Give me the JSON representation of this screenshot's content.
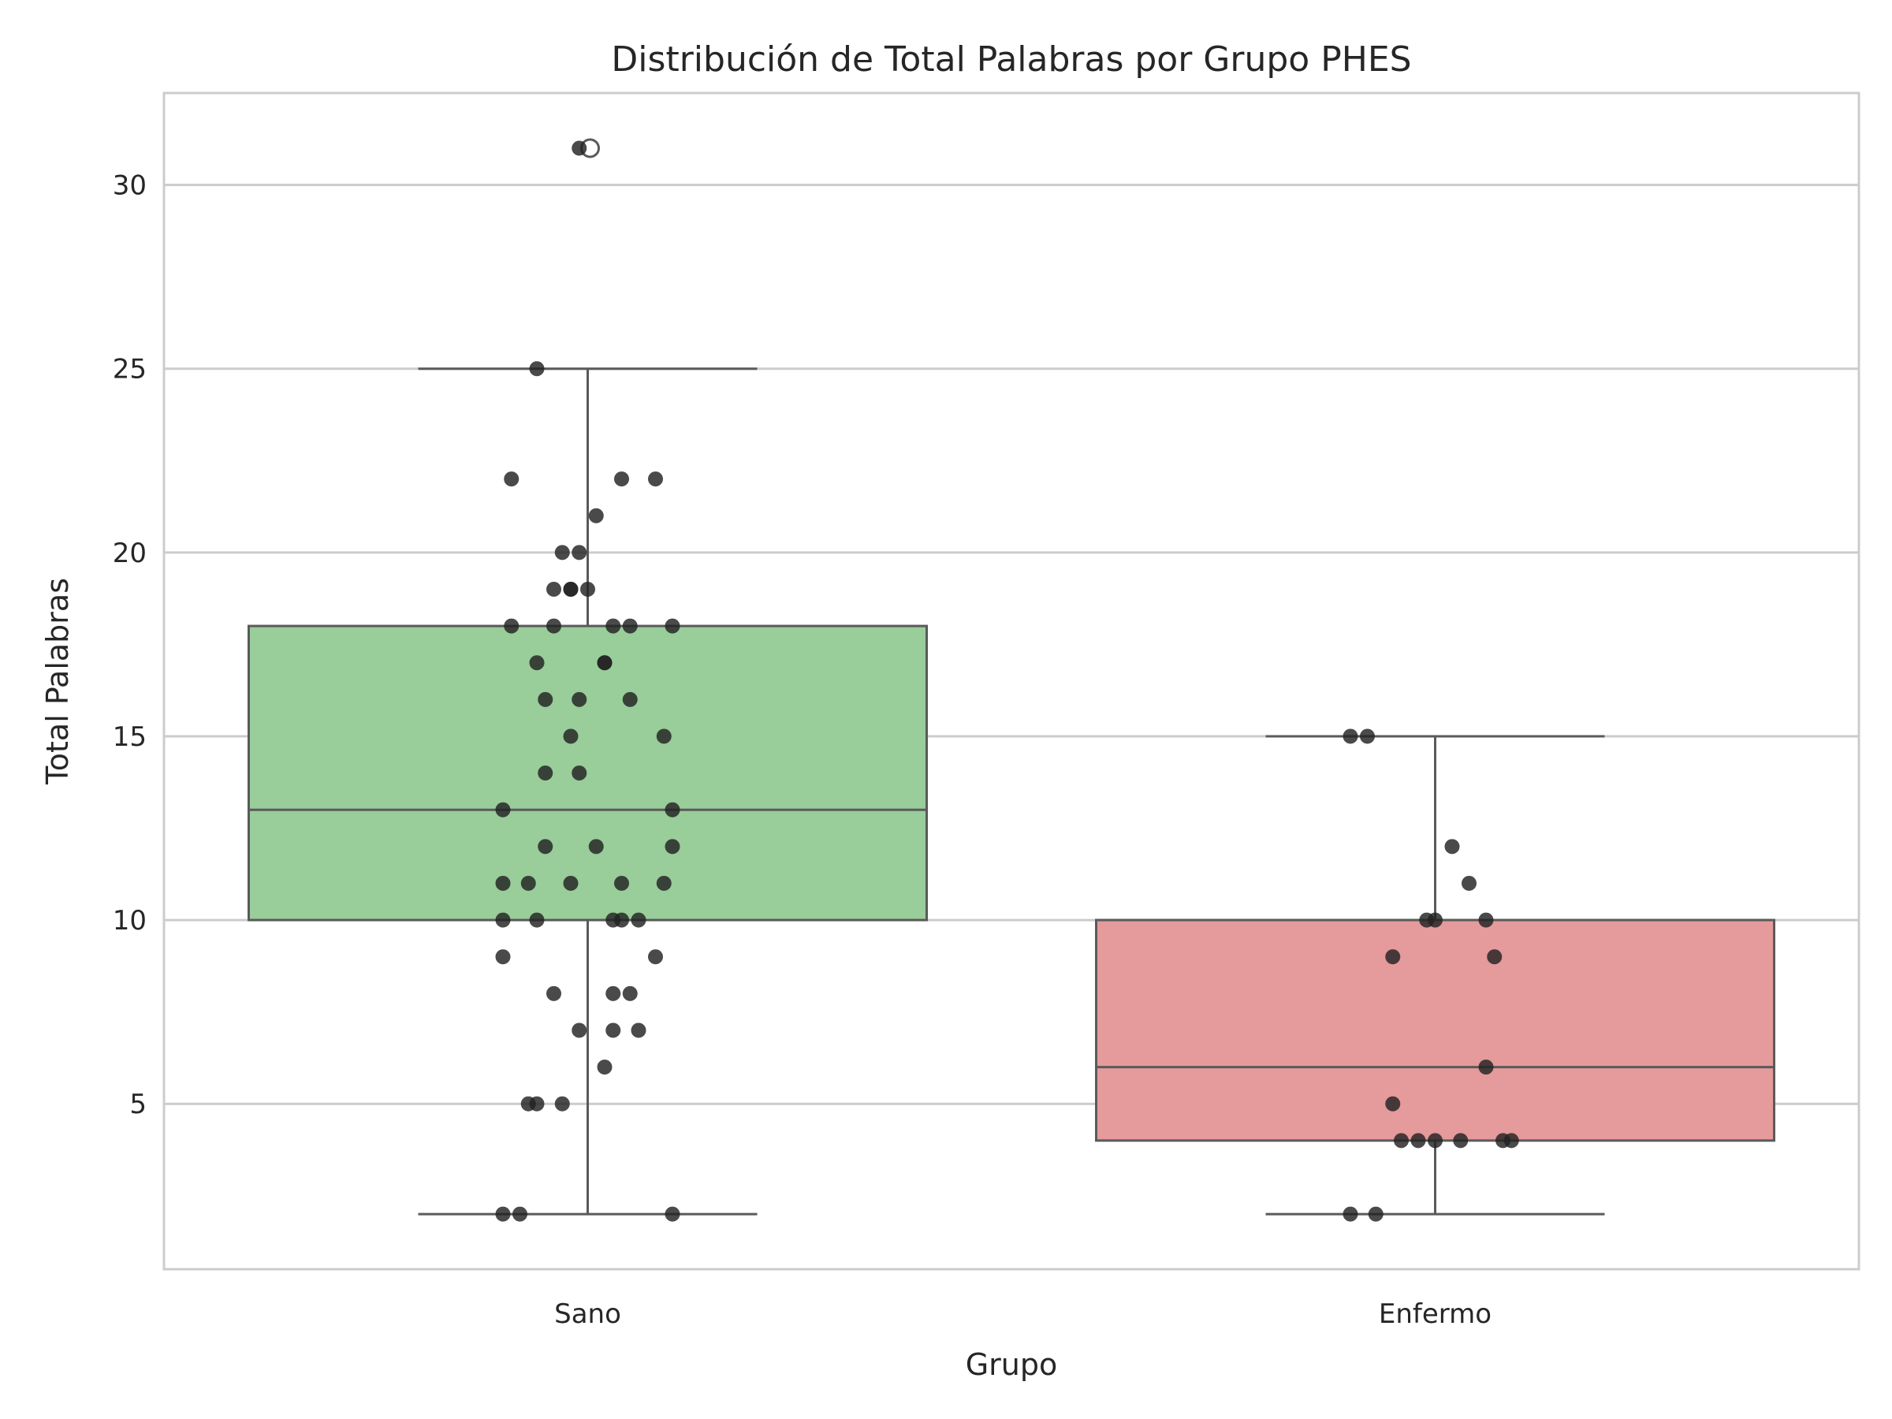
{
  "chart_data": {
    "type": "box",
    "title": "Distribución de Total Palabras por Grupo PHES",
    "xlabel": "Grupo",
    "ylabel": "Total Palabras",
    "ylim": [
      0.5,
      32.5
    ],
    "yticks": [
      5,
      10,
      15,
      20,
      25,
      30
    ],
    "grid": "horizontal",
    "categories": [
      "Sano",
      "Enfermo"
    ],
    "colors": {
      "Sano": "#99cd9a",
      "Enfermo": "#e59a9b",
      "points": "#222222",
      "lines": "#5a5a5a",
      "grid": "#cccccc"
    },
    "boxes": [
      {
        "category": "Sano",
        "whisker_low": 2,
        "q1": 10,
        "median": 13,
        "q3": 18,
        "whisker_high": 25,
        "outliers": [
          31
        ]
      },
      {
        "category": "Enfermo",
        "whisker_low": 2,
        "q1": 4,
        "median": 6,
        "q3": 10,
        "whisker_high": 15,
        "outliers": []
      }
    ],
    "points": [
      {
        "category": "Sano",
        "values": [
          31,
          25,
          22,
          22,
          22,
          21,
          20,
          20,
          19,
          19,
          19,
          19,
          18,
          18,
          18,
          18,
          18,
          17,
          17,
          17,
          16,
          16,
          16,
          15,
          15,
          14,
          14,
          13,
          13,
          12,
          12,
          12,
          11,
          11,
          11,
          11,
          11,
          10,
          10,
          10,
          10,
          10,
          9,
          9,
          8,
          8,
          8,
          7,
          7,
          7,
          6,
          5,
          5,
          5,
          2,
          2,
          2
        ],
        "jitter": [
          -0.01,
          -0.06,
          -0.09,
          0.04,
          0.08,
          0.01,
          -0.03,
          -0.01,
          -0.04,
          -0.02,
          -0.02,
          -0.0,
          0.03,
          0.05,
          -0.09,
          -0.04,
          0.1,
          -0.06,
          0.02,
          0.02,
          -0.01,
          -0.05,
          0.05,
          -0.02,
          0.09,
          -0.05,
          -0.01,
          -0.1,
          0.1,
          -0.05,
          0.01,
          0.1,
          -0.1,
          -0.07,
          -0.02,
          0.04,
          0.09,
          -0.1,
          -0.06,
          0.04,
          0.03,
          0.06,
          -0.1,
          0.08,
          -0.04,
          0.03,
          0.05,
          -0.01,
          0.03,
          0.06,
          0.02,
          -0.07,
          -0.06,
          -0.03,
          -0.1,
          -0.08,
          0.1
        ]
      },
      {
        "category": "Enfermo",
        "values": [
          15,
          15,
          12,
          11,
          10,
          10,
          10,
          9,
          9,
          6,
          5,
          4,
          4,
          4,
          4,
          4,
          4,
          2,
          2
        ],
        "jitter": [
          -0.1,
          -0.08,
          0.02,
          0.04,
          -0.01,
          -0.0,
          0.06,
          -0.05,
          0.07,
          0.06,
          -0.05,
          -0.04,
          -0.02,
          0.0,
          0.03,
          0.08,
          0.09,
          -0.1,
          -0.07
        ]
      }
    ]
  }
}
